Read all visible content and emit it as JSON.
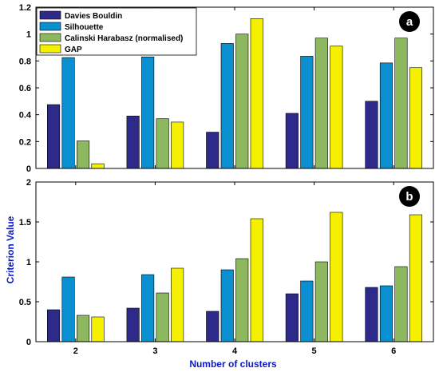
{
  "chart_data": [
    {
      "type": "bar",
      "panel_label": "a",
      "categories": [
        "2",
        "3",
        "4",
        "5",
        "6"
      ],
      "series": [
        {
          "name": "Davies Bouldin",
          "color": "#2e2a8a",
          "values": [
            0.475,
            0.39,
            0.27,
            0.41,
            0.5
          ]
        },
        {
          "name": "Silhouette",
          "color": "#0a8fd0",
          "values": [
            0.825,
            0.83,
            0.93,
            0.835,
            0.785
          ]
        },
        {
          "name": "Calinski Harabasz (normalised)",
          "color": "#8db860",
          "values": [
            0.205,
            0.37,
            1.0,
            0.97,
            0.97
          ]
        },
        {
          "name": "GAP",
          "color": "#f5f000",
          "values": [
            0.035,
            0.345,
            1.115,
            0.91,
            0.75
          ]
        }
      ],
      "ylim": [
        0,
        1.2
      ],
      "yticks": [
        "0",
        "0.2",
        "0.4",
        "0.6",
        "0.8",
        "1",
        "1.2"
      ],
      "legend": "top-left"
    },
    {
      "type": "bar",
      "panel_label": "b",
      "categories": [
        "2",
        "3",
        "4",
        "5",
        "6"
      ],
      "series": [
        {
          "name": "Davies Bouldin",
          "color": "#2e2a8a",
          "values": [
            0.4,
            0.42,
            0.38,
            0.6,
            0.68
          ]
        },
        {
          "name": "Silhouette",
          "color": "#0a8fd0",
          "values": [
            0.81,
            0.84,
            0.9,
            0.76,
            0.7
          ]
        },
        {
          "name": "Calinski Harabasz (normalised)",
          "color": "#8db860",
          "values": [
            0.33,
            0.61,
            1.04,
            1.0,
            0.94
          ]
        },
        {
          "name": "GAP",
          "color": "#f5f000",
          "values": [
            0.31,
            0.92,
            1.54,
            1.62,
            1.59
          ]
        }
      ],
      "ylim": [
        0,
        2
      ],
      "yticks": [
        "0",
        "0.5",
        "1",
        "1.5",
        "2"
      ],
      "xlabel": "Number of clusters",
      "ylabel": "Criterion Value"
    }
  ]
}
